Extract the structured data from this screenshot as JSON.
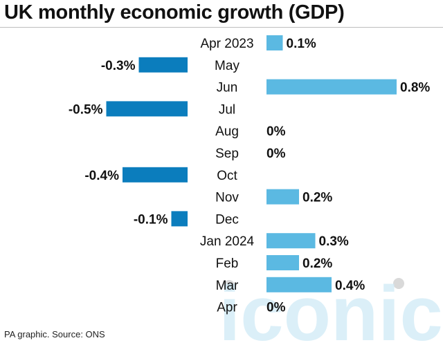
{
  "title": "UK monthly economic growth (GDP)",
  "source": "PA graphic. Source: ONS",
  "watermark": "iconic",
  "colors": {
    "positive": "#5bb9e2",
    "negative": "#0b7dbd",
    "watermark": "#cfeaf6"
  },
  "chart_data": {
    "type": "bar",
    "orientation": "horizontal",
    "categories": [
      "Apr 2023",
      "May",
      "Jun",
      "Jul",
      "Aug",
      "Sep",
      "Oct",
      "Nov",
      "Dec",
      "Jan 2024",
      "Feb",
      "Mar",
      "Apr"
    ],
    "values": [
      0.1,
      -0.3,
      0.8,
      -0.5,
      0,
      0,
      -0.4,
      0.2,
      -0.1,
      0.3,
      0.2,
      0.4,
      0
    ],
    "labels": [
      "0.1%",
      "-0.3%",
      "0.8%",
      "-0.5%",
      "0%",
      "0%",
      "-0.4%",
      "0.2%",
      "-0.1%",
      "0.3%",
      "0.2%",
      "0.4%",
      "0%"
    ],
    "title": "UK monthly economic growth (GDP)",
    "xlabel": "",
    "ylabel": "",
    "grid": false,
    "legend": "none"
  }
}
